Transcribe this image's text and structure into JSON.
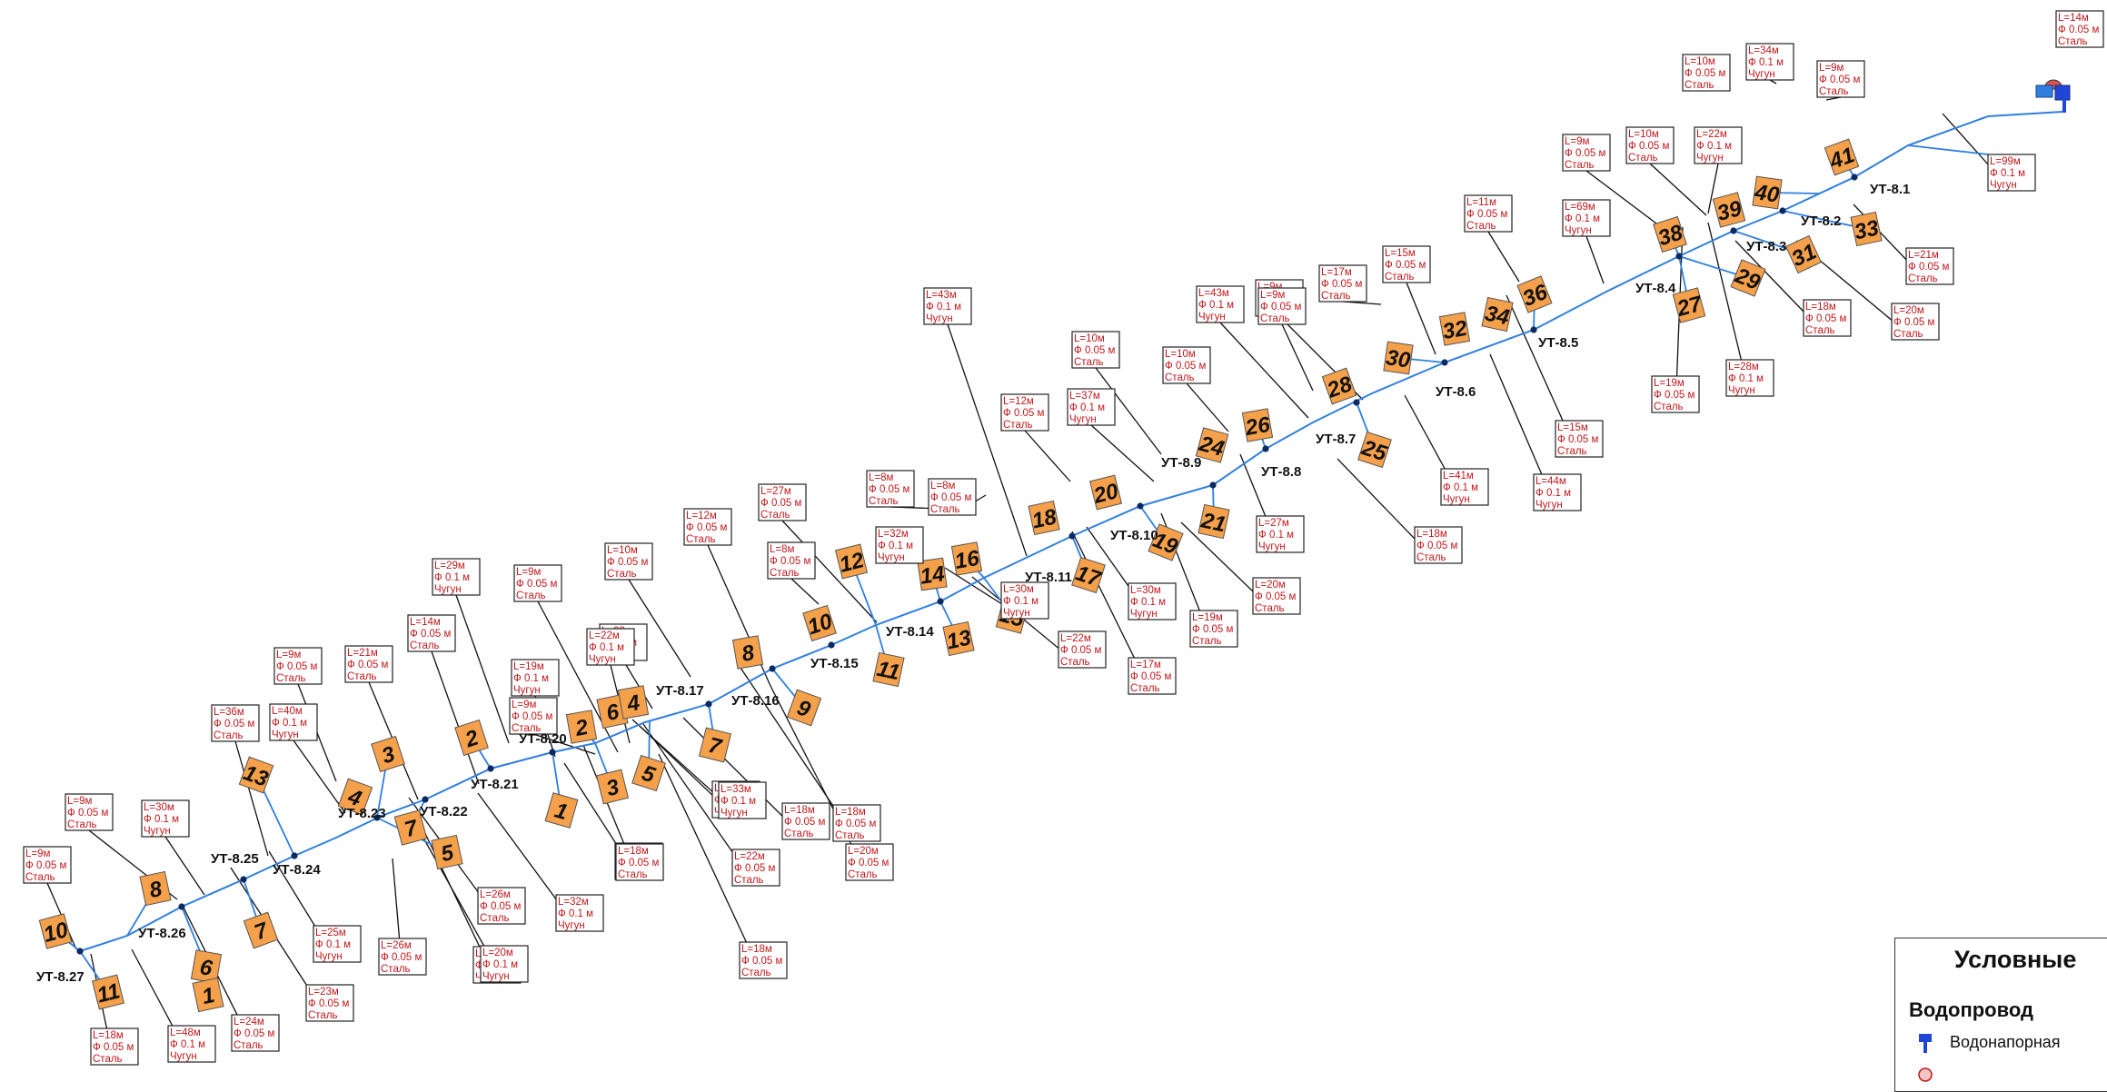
{
  "colors": {
    "pipe": "#2f7fe0",
    "label_text": "#c0191c",
    "house_fill": "#f5a04a",
    "node": "#0b2a63"
  },
  "legend": {
    "title": "Условные",
    "section": "Водопровод",
    "items": [
      {
        "label": "Водонапорная",
        "icon": "water-tower-icon"
      }
    ]
  },
  "nodes": [
    "УТ-8.1",
    "УТ-8.2",
    "УТ-8.3",
    "УТ-8.4",
    "УТ-8.5",
    "УТ-8.6",
    "УТ-8.7",
    "УТ-8.8",
    "УТ-8.9",
    "УТ-8.10",
    "УТ-8.11",
    "УТ-8.14",
    "УТ-8.15",
    "УТ-8.16",
    "УТ-8.17",
    "УТ-8.20",
    "УТ-8.21",
    "УТ-8.22",
    "УТ-8.23",
    "УТ-8.24",
    "УТ-8.25",
    "УТ-8.26",
    "УТ-8.27"
  ],
  "houses": [
    "41",
    "40",
    "39",
    "33",
    "31",
    "38",
    "29",
    "27",
    "36",
    "34",
    "32",
    "30",
    "28",
    "25",
    "26",
    "24",
    "21",
    "20",
    "19",
    "18",
    "17",
    "16",
    "15",
    "14",
    "13",
    "12",
    "11",
    "10",
    "9",
    "8",
    "7",
    "6",
    "5",
    "4",
    "3",
    "2",
    "1",
    "2",
    "3",
    "4",
    "5",
    "7",
    "13",
    "10",
    "11",
    "8",
    "6",
    "7",
    "1"
  ],
  "pipes": [
    {
      "l": "L=14м",
      "d": "Ф 0.05 м",
      "m": "Сталь"
    },
    {
      "l": "L=10м",
      "d": "Ф 0.05 м",
      "m": "Сталь"
    },
    {
      "l": "L=34м",
      "d": "Ф 0.1 м",
      "m": "Чугун"
    },
    {
      "l": "L=9м",
      "d": "Ф 0.05 м",
      "m": "Сталь"
    },
    {
      "l": "L=99м",
      "d": "Ф 0.1 м",
      "m": "Чугун"
    },
    {
      "l": "L=9м",
      "d": "Ф 0.05 м",
      "m": "Сталь"
    },
    {
      "l": "L=10м",
      "d": "Ф 0.05 м",
      "m": "Сталь"
    },
    {
      "l": "L=22м",
      "d": "Ф 0.1 м",
      "m": "Чугун"
    },
    {
      "l": "L=21м",
      "d": "Ф 0.05 м",
      "m": "Сталь"
    },
    {
      "l": "L=11м",
      "d": "Ф 0.05 м",
      "m": "Сталь"
    },
    {
      "l": "L=69м",
      "d": "Ф 0.1 м",
      "m": "Чугун"
    },
    {
      "l": "L=18м",
      "d": "Ф 0.05 м",
      "m": "Сталь"
    },
    {
      "l": "L=20м",
      "d": "Ф 0.05 м",
      "m": "Сталь"
    },
    {
      "l": "L=15м",
      "d": "Ф 0.05 м",
      "m": "Сталь"
    },
    {
      "l": "L=17м",
      "d": "Ф 0.05 м",
      "m": "Сталь"
    },
    {
      "l": "L=43м",
      "d": "Ф 0.1 м",
      "m": "Чугун"
    },
    {
      "l": "L=9м",
      "d": "Ф 0.05 м",
      "m": "Сталь"
    },
    {
      "l": "L=19м",
      "d": "Ф 0.05 м",
      "m": "Сталь"
    },
    {
      "l": "L=28м",
      "d": "Ф 0.1 м",
      "m": "Чугун"
    },
    {
      "l": "L=15м",
      "d": "Ф 0.05 м",
      "m": "Сталь"
    },
    {
      "l": "L=10м",
      "d": "Ф 0.05 м",
      "m": "Сталь"
    },
    {
      "l": "L=10м",
      "d": "Ф 0.05 м",
      "m": "Сталь"
    },
    {
      "l": "L=12м",
      "d": "Ф 0.05 м",
      "m": "Сталь"
    },
    {
      "l": "L=37м",
      "d": "Ф 0.1 м",
      "m": "Чугун"
    },
    {
      "l": "L=44м",
      "d": "Ф 0.1 м",
      "m": "Чугун"
    },
    {
      "l": "L=41м",
      "d": "Ф 0.1 м",
      "m": "Чугун"
    },
    {
      "l": "L=43м",
      "d": "Ф 0.1 м",
      "m": "Чугун"
    },
    {
      "l": "L=9м",
      "d": "Ф 0.05 м",
      "m": "Сталь"
    },
    {
      "l": "L=8м",
      "d": "Ф 0.05 м",
      "m": "Сталь"
    },
    {
      "l": "L=8м",
      "d": "Ф 0.05 м",
      "m": "Сталь"
    },
    {
      "l": "L=27м",
      "d": "Ф 0.1 м",
      "m": "Чугун"
    },
    {
      "l": "L=18м",
      "d": "Ф 0.05 м",
      "m": "Сталь"
    },
    {
      "l": "L=27м",
      "d": "Ф 0.05 м",
      "m": "Сталь"
    },
    {
      "l": "L=32м",
      "d": "Ф 0.1 м",
      "m": "Чугун"
    },
    {
      "l": "L=20м",
      "d": "Ф 0.05 м",
      "m": "Сталь"
    },
    {
      "l": "L=19м",
      "d": "Ф 0.05 м",
      "m": "Сталь"
    },
    {
      "l": "L=30м",
      "d": "Ф 0.1 м",
      "m": "Чугун"
    },
    {
      "l": "L=12м",
      "d": "Ф 0.05 м",
      "m": "Сталь"
    },
    {
      "l": "L=10м",
      "d": "Ф 0.05 м",
      "m": "Сталь"
    },
    {
      "l": "L=8м",
      "d": "Ф 0.05 м",
      "m": "Сталь"
    },
    {
      "l": "L=22м",
      "d": "Ф 0.05 м",
      "m": "Сталь"
    },
    {
      "l": "L=17м",
      "d": "Ф 0.05 м",
      "m": "Сталь"
    },
    {
      "l": "L=30м",
      "d": "Ф 0.1 м",
      "m": "Чугун"
    },
    {
      "l": "L=9м",
      "d": "Ф 0.05 м",
      "m": "Сталь"
    },
    {
      "l": "L=29м",
      "d": "Ф 0.1 м",
      "m": "Чугун"
    },
    {
      "l": "L=20м",
      "d": "Ф 0.1 м",
      "m": "Чугун"
    },
    {
      "l": "L=22м",
      "d": "Ф 0.1 м",
      "m": "Чугун"
    },
    {
      "l": "L=20м",
      "d": "Ф 0.05 м",
      "m": "Сталь"
    },
    {
      "l": "L=18м",
      "d": "Ф 0.05 м",
      "m": "Сталь"
    },
    {
      "l": "L=9м",
      "d": "Ф 0.05 м",
      "m": "Сталь"
    },
    {
      "l": "L=22м",
      "d": "Ф 0.1 м",
      "m": "Чугун"
    },
    {
      "l": "L=14м",
      "d": "Ф 0.05 м",
      "m": "Сталь"
    },
    {
      "l": "L=19м",
      "d": "Ф 0.1 м",
      "m": "Чугун"
    },
    {
      "l": "L=28м",
      "d": "Ф 0.1 м",
      "m": "Чугун"
    },
    {
      "l": "L=20м",
      "d": "Ф 0.05 м",
      "m": "Сталь"
    },
    {
      "l": "L=18м",
      "d": "Ф 0.05 м",
      "m": "Сталь"
    },
    {
      "l": "L=33м",
      "d": "Ф 0.1 м",
      "m": "Чугун"
    },
    {
      "l": "L=18м",
      "d": "Ф 0.05 м",
      "m": "Сталь"
    },
    {
      "l": "L=22м",
      "d": "Ф 0.05 м",
      "m": "Сталь"
    },
    {
      "l": "L=18м",
      "d": "Ф 0.05 м",
      "m": "Сталь"
    },
    {
      "l": "L=32м",
      "d": "Ф 0.1 м",
      "m": "Чугун"
    },
    {
      "l": "L=26м",
      "d": "Ф 0.05 м",
      "m": "Сталь"
    },
    {
      "l": "L=21м",
      "d": "Ф 0.05 м",
      "m": "Сталь"
    },
    {
      "l": "L=9м",
      "d": "Ф 0.05 м",
      "m": "Сталь"
    },
    {
      "l": "L=40м",
      "d": "Ф 0.1 м",
      "m": "Чугун"
    },
    {
      "l": "L=36м",
      "d": "Ф 0.05 м",
      "m": "Сталь"
    },
    {
      "l": "L=26м",
      "d": "Ф 0.05 м",
      "m": "Сталь"
    },
    {
      "l": "L=20м",
      "d": "Ф 0.1 м",
      "m": "Чугун"
    },
    {
      "l": "L=25м",
      "d": "Ф 0.1 м",
      "m": "Чугун"
    },
    {
      "l": "L=23м",
      "d": "Ф 0.05 м",
      "m": "Сталь"
    },
    {
      "l": "L=9м",
      "d": "Ф 0.05 м",
      "m": "Сталь"
    },
    {
      "l": "L=30м",
      "d": "Ф 0.1 м",
      "m": "Чугун"
    },
    {
      "l": "L=9м",
      "d": "Ф 0.05 м",
      "m": "Сталь"
    },
    {
      "l": "L=18м",
      "d": "Ф 0.05 м",
      "m": "Сталь"
    },
    {
      "l": "L=48м",
      "d": "Ф 0.1 м",
      "m": "Чугун"
    },
    {
      "l": "L=24м",
      "d": "Ф 0.05 м",
      "m": "Сталь"
    }
  ]
}
